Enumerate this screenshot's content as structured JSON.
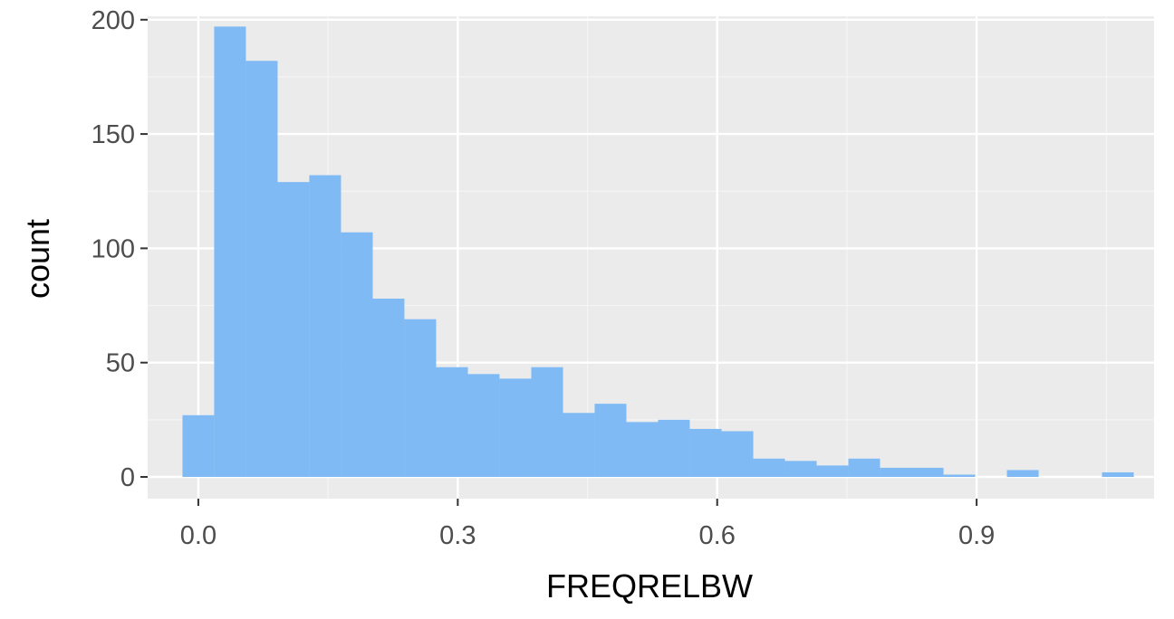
{
  "chart_data": {
    "type": "bar",
    "subtype": "histogram",
    "title": "",
    "xlabel": "FREQRELBW",
    "ylabel": "count",
    "xlim": [
      -0.0586,
      1.1052
    ],
    "ylim": [
      -9.5,
      201.5
    ],
    "x_ticks": [
      0.0,
      0.3,
      0.6,
      0.9
    ],
    "x_tick_labels": [
      "0.0",
      "0.3",
      "0.6",
      "0.9"
    ],
    "y_ticks": [
      0,
      50,
      100,
      150,
      200
    ],
    "y_tick_labels": [
      "0",
      "50",
      "100",
      "150",
      "200"
    ],
    "grid": true,
    "legend": "none",
    "bin_width": 0.03667,
    "bins": [
      {
        "x0": -0.0183,
        "x1": 0.0183,
        "count": 27
      },
      {
        "x0": 0.0183,
        "x1": 0.055,
        "count": 197
      },
      {
        "x0": 0.055,
        "x1": 0.0917,
        "count": 182
      },
      {
        "x0": 0.0917,
        "x1": 0.1283,
        "count": 129
      },
      {
        "x0": 0.1283,
        "x1": 0.165,
        "count": 132
      },
      {
        "x0": 0.165,
        "x1": 0.2017,
        "count": 107
      },
      {
        "x0": 0.2017,
        "x1": 0.2383,
        "count": 78
      },
      {
        "x0": 0.2383,
        "x1": 0.275,
        "count": 69
      },
      {
        "x0": 0.275,
        "x1": 0.3117,
        "count": 48
      },
      {
        "x0": 0.3117,
        "x1": 0.3483,
        "count": 45
      },
      {
        "x0": 0.3483,
        "x1": 0.385,
        "count": 43
      },
      {
        "x0": 0.385,
        "x1": 0.4217,
        "count": 48
      },
      {
        "x0": 0.4217,
        "x1": 0.4583,
        "count": 28
      },
      {
        "x0": 0.4583,
        "x1": 0.495,
        "count": 32
      },
      {
        "x0": 0.495,
        "x1": 0.5317,
        "count": 24
      },
      {
        "x0": 0.5317,
        "x1": 0.5683,
        "count": 25
      },
      {
        "x0": 0.5683,
        "x1": 0.605,
        "count": 21
      },
      {
        "x0": 0.605,
        "x1": 0.6417,
        "count": 20
      },
      {
        "x0": 0.6417,
        "x1": 0.6783,
        "count": 8
      },
      {
        "x0": 0.6783,
        "x1": 0.715,
        "count": 7
      },
      {
        "x0": 0.715,
        "x1": 0.7517,
        "count": 5
      },
      {
        "x0": 0.7517,
        "x1": 0.7883,
        "count": 8
      },
      {
        "x0": 0.7883,
        "x1": 0.825,
        "count": 4
      },
      {
        "x0": 0.825,
        "x1": 0.8617,
        "count": 4
      },
      {
        "x0": 0.8617,
        "x1": 0.8983,
        "count": 1
      },
      {
        "x0": 0.8983,
        "x1": 0.935,
        "count": 0
      },
      {
        "x0": 0.935,
        "x1": 0.9717,
        "count": 3
      },
      {
        "x0": 0.9717,
        "x1": 1.0083,
        "count": 0
      },
      {
        "x0": 1.0083,
        "x1": 1.045,
        "count": 0
      },
      {
        "x0": 1.045,
        "x1": 1.0817,
        "count": 2
      }
    ],
    "colors": {
      "bar_fill": "#7fbaf5",
      "panel_background": "#ebebeb",
      "grid_major": "#ffffff",
      "grid_minor": "#f5f5f5",
      "tick_text": "#4d4d4d",
      "tick_mark": "#333333",
      "axis_title": "#000000"
    }
  }
}
